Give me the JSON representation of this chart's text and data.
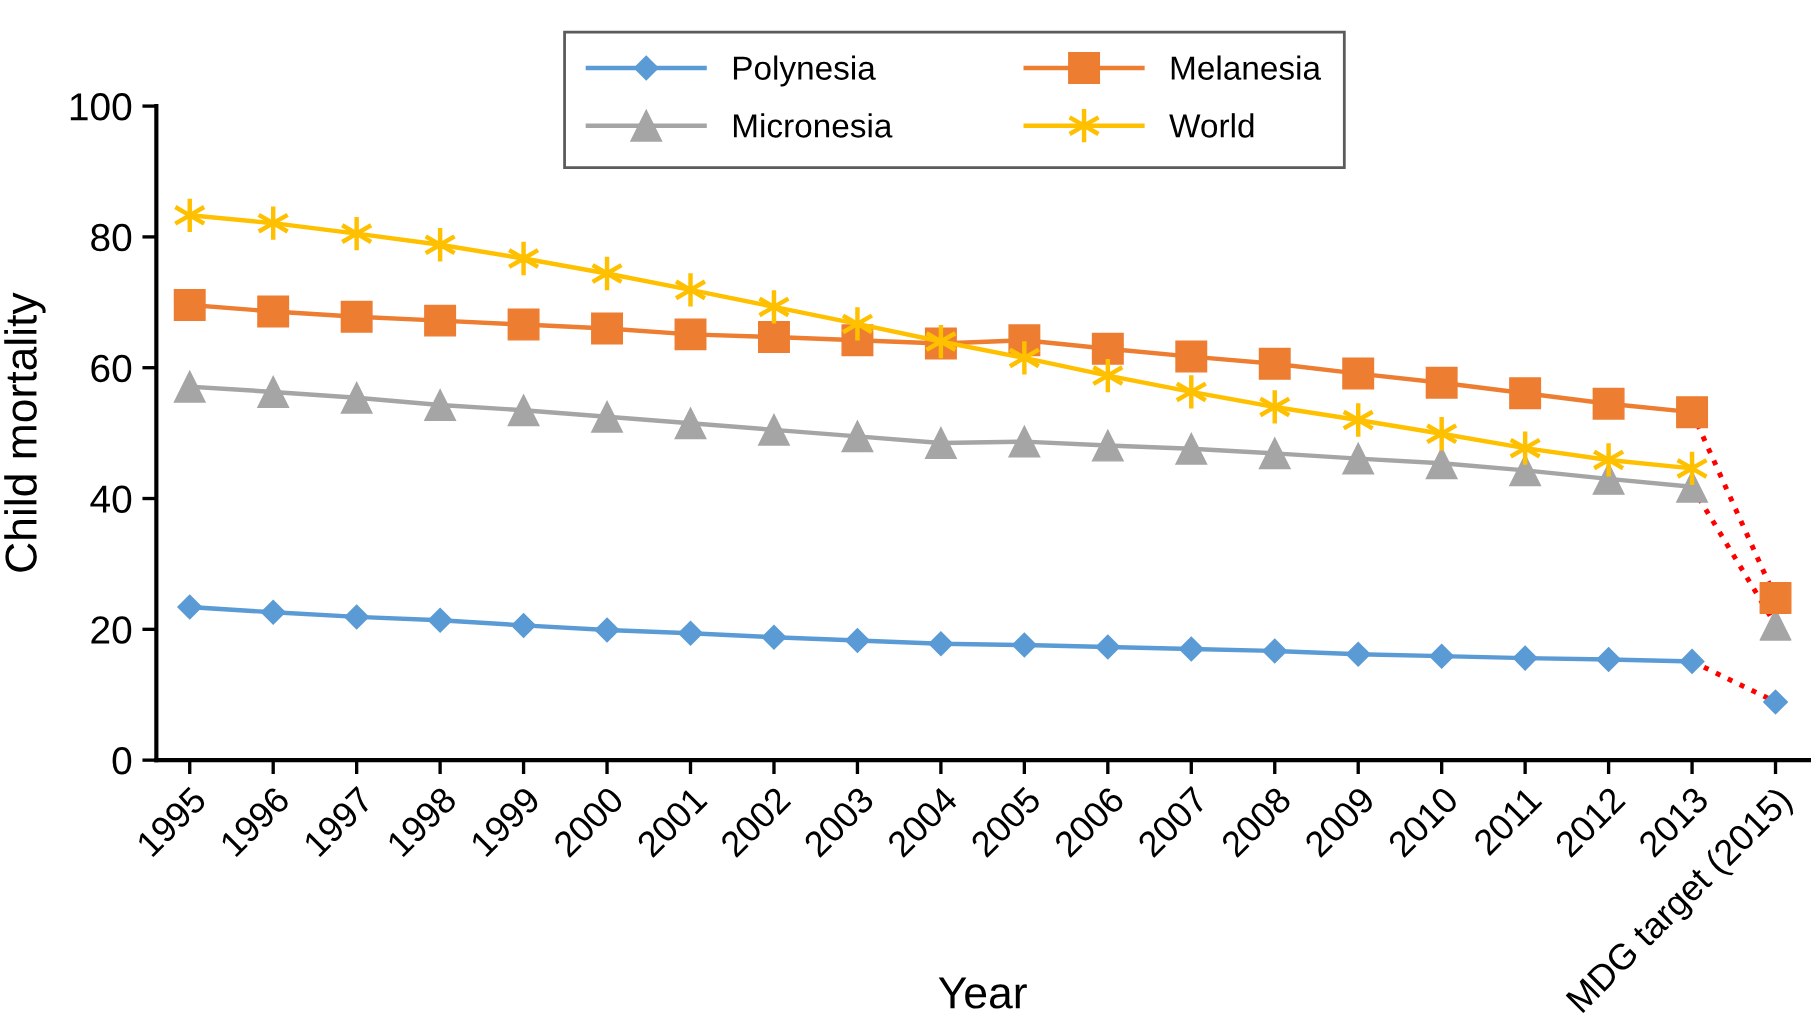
{
  "chart_data": {
    "type": "line",
    "categories": [
      "1995",
      "1996",
      "1997",
      "1998",
      "1999",
      "2000",
      "2001",
      "2002",
      "2003",
      "2004",
      "2005",
      "2006",
      "2007",
      "2008",
      "2009",
      "2010",
      "2011",
      "2012",
      "2013",
      "MDG target (2015)"
    ],
    "series": [
      {
        "name": "Polynesia",
        "color": "#5b9bd5",
        "marker": "diamond",
        "values": [
          23.4,
          22.6,
          21.9,
          21.4,
          20.6,
          19.9,
          19.4,
          18.8,
          18.3,
          17.8,
          17.6,
          17.3,
          17.0,
          16.7,
          16.2,
          15.9,
          15.6,
          15.4,
          15.1,
          null
        ]
      },
      {
        "name": "Micronesia",
        "color": "#a5a5a5",
        "marker": "triangle",
        "values": [
          57.1,
          56.3,
          55.4,
          54.3,
          53.5,
          52.5,
          51.5,
          50.5,
          49.5,
          48.5,
          48.7,
          48.1,
          47.6,
          46.9,
          46.1,
          45.4,
          44.3,
          43.0,
          41.8,
          null
        ]
      },
      {
        "name": "Melanesia",
        "color": "#ed7d31",
        "marker": "square",
        "values": [
          69.6,
          68.6,
          67.8,
          67.2,
          66.6,
          66.0,
          65.1,
          64.7,
          64.2,
          63.7,
          64.2,
          62.9,
          61.7,
          60.6,
          59.1,
          57.7,
          56.1,
          54.5,
          53.2,
          null
        ]
      },
      {
        "name": "World",
        "color": "#ffc000",
        "marker": "cross",
        "values": [
          83.3,
          82.1,
          80.5,
          78.8,
          76.7,
          74.4,
          71.9,
          69.3,
          66.7,
          64.0,
          61.5,
          58.8,
          56.3,
          54.0,
          52.0,
          49.9,
          47.7,
          45.9,
          44.6,
          null
        ]
      },
      {
        "type": "line",
        "color": "#ff0000",
        "line_style": "dotted",
        "marker": "none",
        "values": [
          null,
          null,
          null,
          null,
          null,
          null,
          null,
          null,
          null,
          null,
          null,
          null,
          null,
          null,
          null,
          null,
          null,
          null,
          15.1,
          8.9
        ]
      },
      {
        "type": "line",
        "color": "#ff0000",
        "line_style": "dotted",
        "marker": "none",
        "values": [
          null,
          null,
          null,
          null,
          null,
          null,
          null,
          null,
          null,
          null,
          null,
          null,
          null,
          null,
          null,
          null,
          null,
          null,
          41.8,
          20.7
        ]
      },
      {
        "type": "line",
        "color": "#ff0000",
        "line_style": "dotted",
        "marker": "none",
        "values": [
          null,
          null,
          null,
          null,
          null,
          null,
          null,
          null,
          null,
          null,
          null,
          null,
          null,
          null,
          null,
          null,
          null,
          null,
          53.2,
          24.8
        ]
      },
      {
        "type": "scatter",
        "color": "#5b9bd5",
        "marker": "diamond",
        "values": [
          null,
          null,
          null,
          null,
          null,
          null,
          null,
          null,
          null,
          null,
          null,
          null,
          null,
          null,
          null,
          null,
          null,
          null,
          null,
          8.9
        ]
      },
      {
        "type": "scatter",
        "color": "#a5a5a5",
        "marker": "triangle",
        "values": [
          null,
          null,
          null,
          null,
          null,
          null,
          null,
          null,
          null,
          null,
          null,
          null,
          null,
          null,
          null,
          null,
          null,
          null,
          null,
          20.7
        ]
      },
      {
        "type": "scatter",
        "color": "#ed7d31",
        "marker": "square",
        "values": [
          null,
          null,
          null,
          null,
          null,
          null,
          null,
          null,
          null,
          null,
          null,
          null,
          null,
          null,
          null,
          null,
          null,
          null,
          null,
          24.8
        ]
      }
    ],
    "xlabel": "Year",
    "ylabel": "Child mortality",
    "ylim": [
      0,
      100
    ],
    "yticks": [
      0,
      20,
      40,
      60,
      80,
      100
    ],
    "grid": false,
    "legend": "top"
  }
}
